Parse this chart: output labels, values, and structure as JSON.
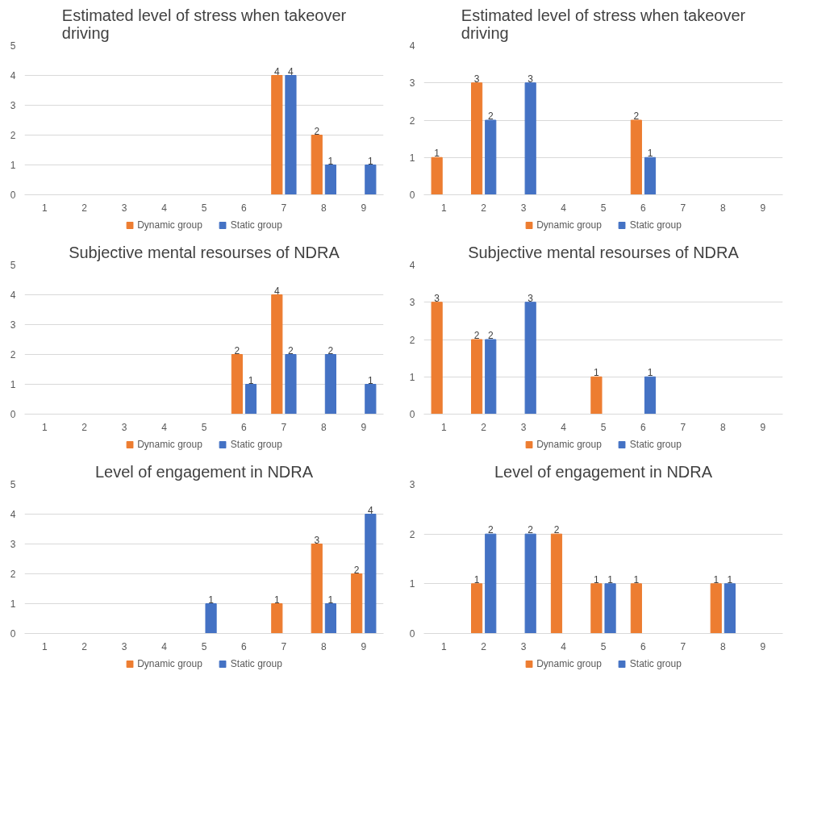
{
  "chart_data": [
    {
      "type": "bar",
      "title": "Estimated level of stress when takeover driving",
      "categories": [
        "1",
        "2",
        "3",
        "4",
        "5",
        "6",
        "7",
        "8",
        "9"
      ],
      "ylim": [
        0,
        5
      ],
      "yticks": [
        0,
        1,
        2,
        3,
        4,
        5
      ],
      "grid": "y",
      "legend": "bottom",
      "series": [
        {
          "name": "Dynamic group",
          "color": "#ed7d31",
          "values": [
            0,
            0,
            0,
            0,
            0,
            0,
            4,
            2,
            0
          ],
          "value_labels": [
            null,
            null,
            null,
            null,
            null,
            null,
            "4",
            "2",
            null
          ]
        },
        {
          "name": "Static group",
          "color": "#4472c4",
          "values": [
            0,
            0,
            0,
            0,
            0,
            0,
            4,
            1,
            1
          ],
          "value_labels": [
            null,
            null,
            null,
            null,
            null,
            null,
            "4",
            "1",
            "1"
          ]
        }
      ]
    },
    {
      "type": "bar",
      "title": "Estimated level of stress when takeover driving",
      "categories": [
        "1",
        "2",
        "3",
        "4",
        "5",
        "6",
        "7",
        "8",
        "9"
      ],
      "ylim": [
        0,
        4
      ],
      "yticks": [
        0,
        1,
        2,
        3,
        4
      ],
      "grid": "y",
      "legend": "bottom",
      "series": [
        {
          "name": "Dynamic group",
          "color": "#ed7d31",
          "values": [
            1,
            3,
            0,
            0,
            0,
            2,
            0,
            0,
            0
          ],
          "value_labels": [
            "1",
            "3",
            null,
            null,
            null,
            "2",
            null,
            null,
            null
          ]
        },
        {
          "name": "Static group",
          "color": "#4472c4",
          "values": [
            0,
            2,
            3,
            0,
            0,
            1,
            0,
            0,
            0
          ],
          "value_labels": [
            null,
            "2",
            "3",
            null,
            null,
            "1",
            null,
            null,
            null
          ]
        }
      ]
    },
    {
      "type": "bar",
      "title": "Subjective mental resourses of NDRA",
      "categories": [
        "1",
        "2",
        "3",
        "4",
        "5",
        "6",
        "7",
        "8",
        "9"
      ],
      "ylim": [
        0,
        5
      ],
      "yticks": [
        0,
        1,
        2,
        3,
        4,
        5
      ],
      "grid": "y",
      "legend": "bottom",
      "series": [
        {
          "name": "Dynamic group",
          "color": "#ed7d31",
          "values": [
            0,
            0,
            0,
            0,
            0,
            2,
            4,
            0,
            0
          ],
          "value_labels": [
            null,
            null,
            null,
            null,
            null,
            "2",
            "4",
            null,
            null
          ]
        },
        {
          "name": "Static group",
          "color": "#4472c4",
          "values": [
            0,
            0,
            0,
            0,
            0,
            1,
            2,
            2,
            1
          ],
          "value_labels": [
            null,
            null,
            null,
            null,
            null,
            "1",
            "2",
            "2",
            "1"
          ]
        }
      ]
    },
    {
      "type": "bar",
      "title": "Subjective mental resourses of NDRA",
      "categories": [
        "1",
        "2",
        "3",
        "4",
        "5",
        "6",
        "7",
        "8",
        "9"
      ],
      "ylim": [
        0,
        4
      ],
      "yticks": [
        0,
        1,
        2,
        3,
        4
      ],
      "grid": "y",
      "legend": "bottom",
      "series": [
        {
          "name": "Dynamic group",
          "color": "#ed7d31",
          "values": [
            3,
            2,
            0,
            0,
            1,
            0,
            0,
            0,
            0
          ],
          "value_labels": [
            "3",
            "2",
            null,
            null,
            "1",
            null,
            null,
            null,
            null
          ]
        },
        {
          "name": "Static group",
          "color": "#4472c4",
          "values": [
            0,
            2,
            3,
            0,
            0,
            1,
            0,
            0,
            0
          ],
          "value_labels": [
            null,
            "2",
            "3",
            null,
            null,
            "1",
            null,
            null,
            null
          ]
        }
      ]
    },
    {
      "type": "bar",
      "title": "Level of engagement in NDRA",
      "categories": [
        "1",
        "2",
        "3",
        "4",
        "5",
        "6",
        "7",
        "8",
        "9"
      ],
      "ylim": [
        0,
        5
      ],
      "yticks": [
        0,
        1,
        2,
        3,
        4,
        5
      ],
      "grid": "y",
      "legend": "bottom",
      "series": [
        {
          "name": "Dynamic group",
          "color": "#ed7d31",
          "values": [
            0,
            0,
            0,
            0,
            0,
            0,
            1,
            3,
            2
          ],
          "value_labels": [
            null,
            null,
            null,
            null,
            null,
            null,
            "1",
            "3",
            "2"
          ]
        },
        {
          "name": "Static group",
          "color": "#4472c4",
          "values": [
            0,
            0,
            0,
            0,
            1,
            0,
            0,
            1,
            4
          ],
          "value_labels": [
            null,
            null,
            null,
            null,
            "1",
            null,
            null,
            "1",
            "4"
          ]
        }
      ]
    },
    {
      "type": "bar",
      "title": "Level of engagement in NDRA",
      "categories": [
        "1",
        "2",
        "3",
        "4",
        "5",
        "6",
        "7",
        "8",
        "9"
      ],
      "ylim": [
        0,
        3
      ],
      "yticks": [
        0,
        1,
        2,
        3
      ],
      "grid": "y",
      "legend": "bottom",
      "series": [
        {
          "name": "Dynamic group",
          "color": "#ed7d31",
          "values": [
            0,
            1,
            0,
            2,
            1,
            1,
            0,
            1,
            0
          ],
          "value_labels": [
            null,
            "1",
            null,
            "2",
            "1",
            "1",
            null,
            "1",
            null
          ]
        },
        {
          "name": "Static group",
          "color": "#4472c4",
          "values": [
            0,
            2,
            2,
            0,
            1,
            0,
            0,
            1,
            0
          ],
          "value_labels": [
            null,
            "2",
            "2",
            null,
            "1",
            null,
            null,
            "1",
            null
          ]
        }
      ]
    }
  ]
}
